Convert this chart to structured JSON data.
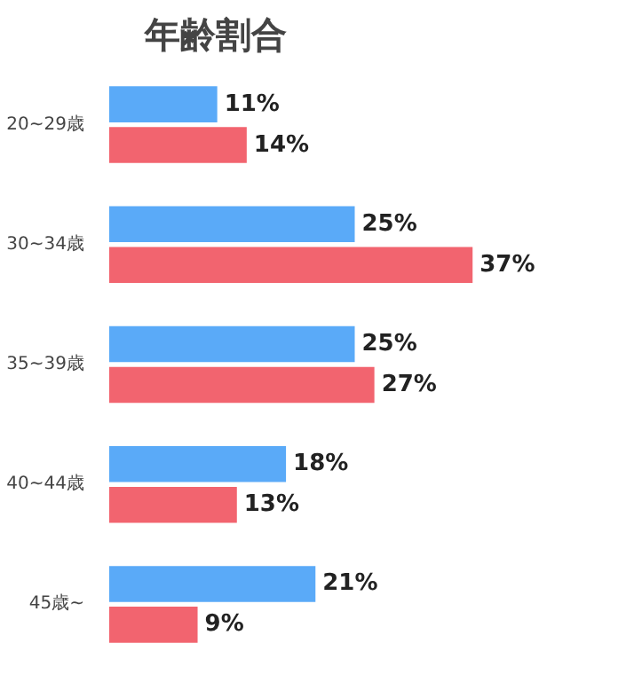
{
  "chart_data": {
    "type": "bar",
    "orientation": "horizontal",
    "title": "年齢割合",
    "categories": [
      "20~29歳",
      "30~34歳",
      "35~39歳",
      "40~44歳",
      "45歳~"
    ],
    "series": [
      {
        "color": "#5aaaf8",
        "values": [
          11,
          25,
          25,
          18,
          21
        ],
        "value_labels": [
          "11%",
          "25%",
          "25%",
          "18%",
          "21%"
        ]
      },
      {
        "color": "#f2646f",
        "values": [
          14,
          37,
          27,
          13,
          9
        ],
        "value_labels": [
          "14%",
          "37%",
          "27%",
          "13%",
          "9%"
        ]
      }
    ]
  }
}
